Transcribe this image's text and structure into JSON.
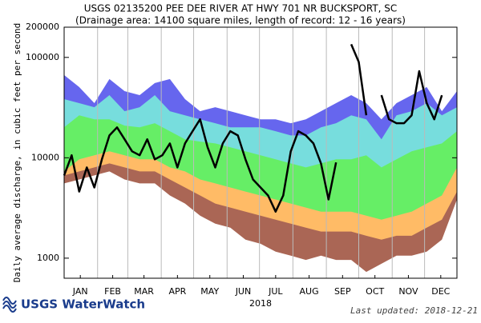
{
  "chart_data": {
    "type": "area",
    "title": "USGS 02135200 PEE DEE RIVER AT HWY 701 NR BUCKSPORT, SC",
    "subtitle": "(Drainage area: 14100 square miles, length of record: 12 - 16 years)",
    "ylabel": "Daily average discharge, in cubic feet per second",
    "xlabel": "2018",
    "log_y": true,
    "ylim": [
      631,
      200000
    ],
    "yticks": [
      1000,
      10000,
      100000,
      200000
    ],
    "xlim": [
      1,
      365
    ],
    "xticks": [
      {
        "value": 16,
        "label": "JAN"
      },
      {
        "value": 46,
        "label": "FEB"
      },
      {
        "value": 75,
        "label": "MAR"
      },
      {
        "value": 106,
        "label": "APR"
      },
      {
        "value": 136,
        "label": "MAY"
      },
      {
        "value": 167,
        "label": "JUN"
      },
      {
        "value": 197,
        "label": "JUL"
      },
      {
        "value": 228,
        "label": "AUG"
      },
      {
        "value": 259,
        "label": "SEP"
      },
      {
        "value": 289,
        "label": "OCT"
      },
      {
        "value": 320,
        "label": "NOV"
      },
      {
        "value": 350,
        "label": "DEC"
      }
    ],
    "xgrid": [
      32,
      60,
      91,
      121,
      152,
      182,
      213,
      244,
      274,
      305,
      335
    ],
    "x": [
      1,
      15,
      29,
      43,
      57,
      71,
      85,
      99,
      113,
      127,
      141,
      155,
      169,
      183,
      197,
      211,
      225,
      239,
      253,
      267,
      281,
      295,
      309,
      323,
      337,
      351,
      365
    ],
    "series": [
      {
        "color": "#6666ee",
        "values": [
          66700,
          50600,
          35000,
          60800,
          46100,
          42100,
          55500,
          60800,
          38400,
          29100,
          31900,
          29100,
          26500,
          24200,
          24200,
          22100,
          24200,
          29100,
          35000,
          42100,
          35000,
          24200,
          35000,
          42100,
          50600,
          29100,
          46100
        ]
      },
      {
        "color": "#77dddd",
        "values": [
          38400,
          35000,
          31900,
          42100,
          29100,
          31900,
          42100,
          29100,
          26500,
          24200,
          22100,
          20100,
          20100,
          20100,
          18400,
          16700,
          16700,
          20100,
          22100,
          26500,
          24200,
          15300,
          26500,
          29100,
          35000,
          26500,
          31900
        ]
      },
      {
        "color": "#66ee66",
        "values": [
          20100,
          26500,
          24200,
          24200,
          20900,
          20100,
          22100,
          18400,
          15300,
          14500,
          13900,
          12700,
          11600,
          10600,
          9640,
          8790,
          8020,
          8790,
          9640,
          9640,
          10600,
          8020,
          9640,
          11600,
          12700,
          13900,
          18400
        ]
      },
      {
        "color": "#ffbb66",
        "values": [
          7310,
          9640,
          10600,
          11600,
          10600,
          9640,
          9640,
          8020,
          7310,
          6080,
          5550,
          5060,
          4610,
          4210,
          3840,
          3500,
          3190,
          2910,
          2910,
          2910,
          2650,
          2420,
          2650,
          2910,
          3500,
          4210,
          8020
        ]
      },
      {
        "color": "#aa6655",
        "values": [
          6670,
          7310,
          8020,
          8790,
          8020,
          7310,
          7310,
          6080,
          5060,
          4210,
          3500,
          3190,
          2910,
          2650,
          2420,
          2210,
          2010,
          1840,
          1840,
          1840,
          1670,
          1530,
          1670,
          1670,
          2010,
          2420,
          4610
        ]
      },
      {
        "color": "#ffffff",
        "values": [
          5550,
          6080,
          6670,
          7310,
          6080,
          5550,
          5550,
          4210,
          3500,
          2650,
          2210,
          2010,
          1530,
          1390,
          1160,
          1060,
          960,
          1060,
          960,
          960,
          730,
          880,
          1060,
          1060,
          1160,
          1530,
          3840
        ]
      },
      {
        "type": "line",
        "color": "#000000",
        "x": [
          1,
          8,
          15,
          22,
          29,
          36,
          43,
          50,
          57,
          64,
          71,
          78,
          85,
          92,
          99,
          106,
          113,
          120,
          127,
          134,
          141,
          148,
          155,
          162,
          169,
          176,
          183,
          190,
          197,
          204,
          211,
          218,
          225,
          232,
          239,
          246,
          253,
          260,
          267,
          274,
          281,
          288,
          295,
          302,
          309,
          316,
          323,
          330,
          337,
          344,
          351,
          358,
          365
        ],
        "values": [
          6670,
          10600,
          4610,
          8020,
          5060,
          9640,
          16700,
          20100,
          15300,
          11600,
          10600,
          15300,
          9640,
          10600,
          13900,
          8020,
          13900,
          18400,
          24200,
          12700,
          8020,
          13900,
          18400,
          16700,
          9640,
          6080,
          5060,
          4210,
          2910,
          4210,
          11600,
          18400,
          16700,
          13900,
          8790,
          3840,
          9000,
          null,
          135000,
          90000,
          26500,
          null,
          42100,
          24200,
          22100,
          22100,
          26500,
          73000,
          35000,
          24200,
          42000,
          null,
          null
        ]
      }
    ],
    "footer_logo": "USGS WaterWatch",
    "updated": "Last updated: 2018-12-21"
  }
}
